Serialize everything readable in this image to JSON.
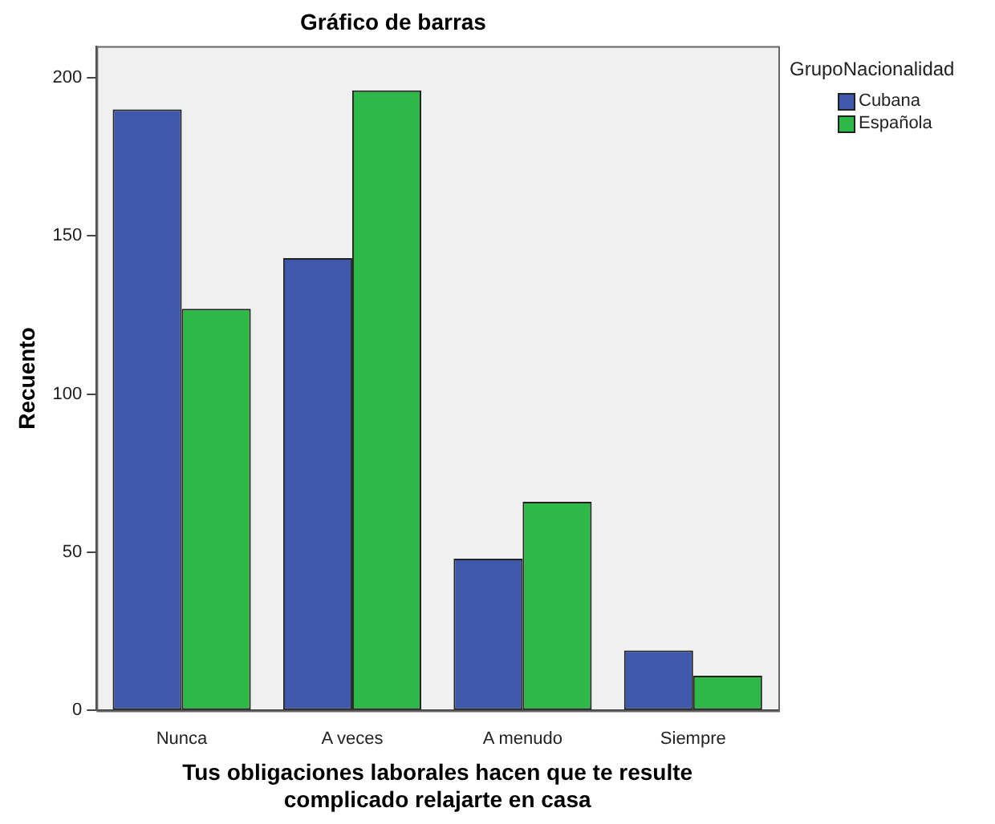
{
  "chart_data": {
    "type": "bar",
    "title": "Gráfico de barras",
    "xlabel": "Tus obligaciones laborales hacen que te resulte complicado relajarte en casa",
    "ylabel": "Recuento",
    "legend_title": "GrupoNacionalidad",
    "categories": [
      "Nunca",
      "A veces",
      "A menudo",
      "Siempre"
    ],
    "series": [
      {
        "name": "Cubana",
        "color": "#3e58ac",
        "values": [
          190,
          143,
          48,
          19
        ]
      },
      {
        "name": "Española",
        "color": "#2eb848",
        "values": [
          127,
          196,
          66,
          11
        ]
      }
    ],
    "ylim": [
      0,
      210
    ],
    "yticks": [
      0,
      50,
      100,
      150,
      200
    ],
    "grid": false,
    "legend": "top right"
  }
}
